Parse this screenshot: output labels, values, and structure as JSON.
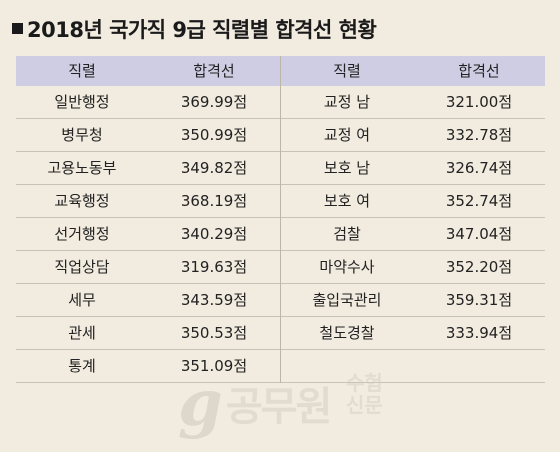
{
  "title": "2018년 국가직 9급 직렬별 합격선 현황",
  "headers": {
    "col1": "직렬",
    "col2": "합격선"
  },
  "left_rows": [
    {
      "name": "일반행정",
      "score": "369.99점"
    },
    {
      "name": "병무청",
      "score": "350.99점"
    },
    {
      "name": "고용노동부",
      "score": "349.82점"
    },
    {
      "name": "교육행정",
      "score": "368.19점"
    },
    {
      "name": "선거행정",
      "score": "340.29점"
    },
    {
      "name": "직업상담",
      "score": "319.63점"
    },
    {
      "name": "세무",
      "score": "343.59점"
    },
    {
      "name": "관세",
      "score": "350.53점"
    },
    {
      "name": "통계",
      "score": "351.09점"
    }
  ],
  "right_rows": [
    {
      "name": "교정 남",
      "score": "321.00점"
    },
    {
      "name": "교정 여",
      "score": "332.78점"
    },
    {
      "name": "보호 남",
      "score": "326.74점"
    },
    {
      "name": "보호 여",
      "score": "352.74점"
    },
    {
      "name": "검찰",
      "score": "347.04점"
    },
    {
      "name": "마약수사",
      "score": "352.20점"
    },
    {
      "name": "출입국관리",
      "score": "359.31점"
    },
    {
      "name": "철도경찰",
      "score": "333.94점"
    }
  ],
  "watermark": {
    "main": "공무원",
    "side_top": "수험",
    "side_bottom": "신문"
  }
}
